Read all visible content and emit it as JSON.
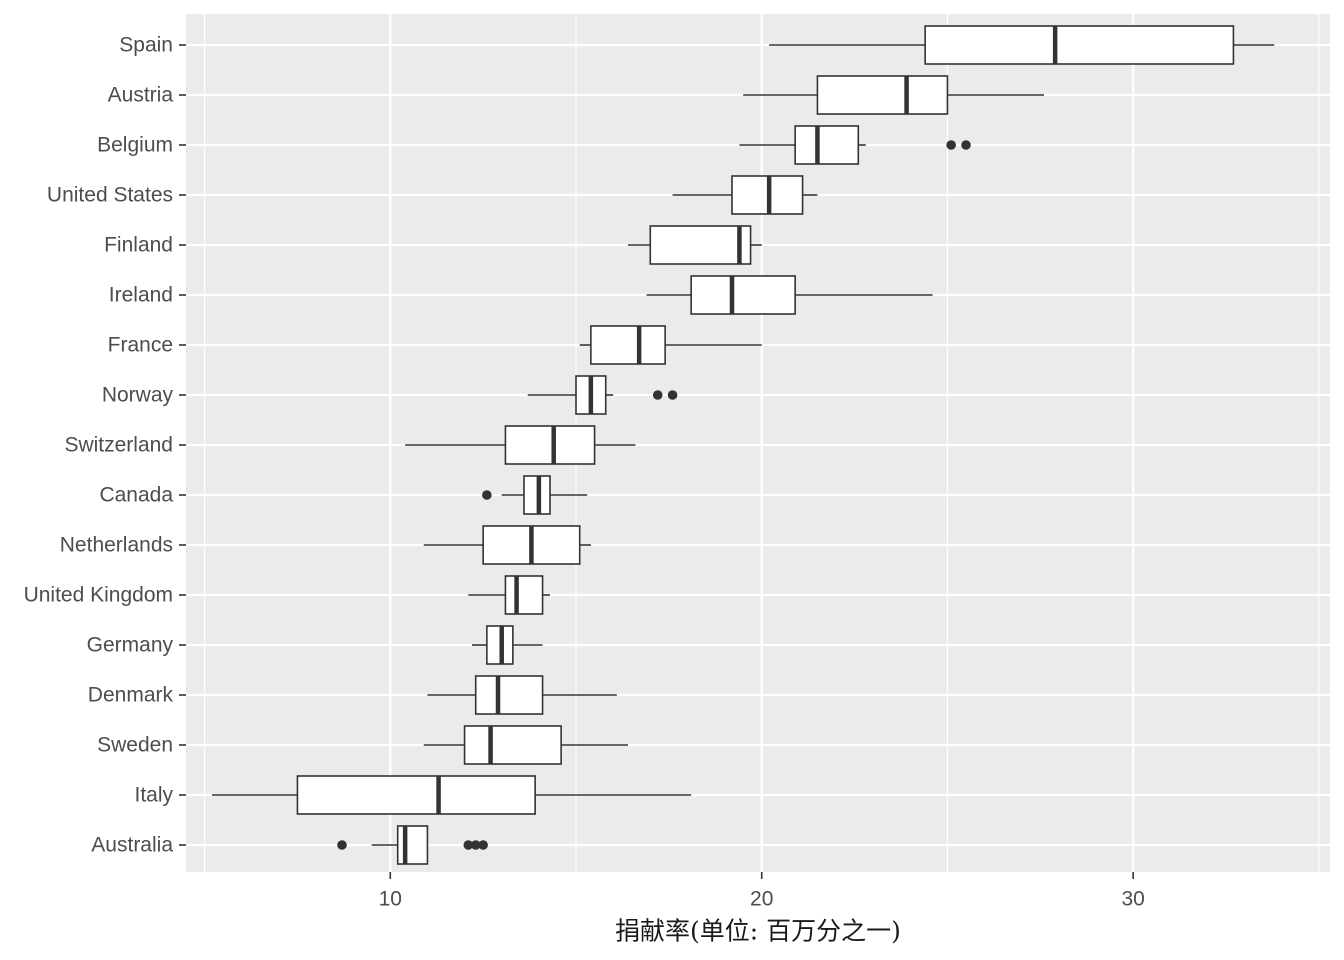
{
  "chart_data": {
    "type": "boxplot",
    "orientation": "horizontal",
    "xlabel": "捐献率(单位: 百万分之一)",
    "ylabel": "",
    "xlim": [
      4.5,
      35.3
    ],
    "x_ticks": [
      10,
      20,
      30
    ],
    "grid": true,
    "colors": {
      "panel": "#ebebeb",
      "grid_major": "#ffffff",
      "box_fill": "#ffffff",
      "box_line": "#333333",
      "outlier": "#333333"
    },
    "categories": [
      "Spain",
      "Austria",
      "Belgium",
      "United States",
      "Finland",
      "Ireland",
      "France",
      "Norway",
      "Switzerland",
      "Canada",
      "Netherlands",
      "United Kingdom",
      "Germany",
      "Denmark",
      "Sweden",
      "Italy",
      "Australia"
    ],
    "boxes": [
      {
        "label": "Spain",
        "min": 20.2,
        "q1": 24.4,
        "median": 27.9,
        "q3": 32.7,
        "max": 33.8,
        "outliers": []
      },
      {
        "label": "Austria",
        "min": 19.5,
        "q1": 21.5,
        "median": 23.9,
        "q3": 25.0,
        "max": 27.6,
        "outliers": []
      },
      {
        "label": "Belgium",
        "min": 19.4,
        "q1": 20.9,
        "median": 21.5,
        "q3": 22.6,
        "max": 22.8,
        "outliers": [
          25.1,
          25.5
        ]
      },
      {
        "label": "United States",
        "min": 17.6,
        "q1": 19.2,
        "median": 20.2,
        "q3": 21.1,
        "max": 21.5,
        "outliers": []
      },
      {
        "label": "Finland",
        "min": 16.4,
        "q1": 17.0,
        "median": 19.4,
        "q3": 19.7,
        "max": 20.0,
        "outliers": []
      },
      {
        "label": "Ireland",
        "min": 16.9,
        "q1": 18.1,
        "median": 19.2,
        "q3": 20.9,
        "max": 24.6,
        "outliers": []
      },
      {
        "label": "France",
        "min": 15.1,
        "q1": 15.4,
        "median": 16.7,
        "q3": 17.4,
        "max": 20.0,
        "outliers": []
      },
      {
        "label": "Norway",
        "min": 13.7,
        "q1": 15.0,
        "median": 15.4,
        "q3": 15.8,
        "max": 16.0,
        "outliers": [
          17.2,
          17.6
        ]
      },
      {
        "label": "Switzerland",
        "min": 10.4,
        "q1": 13.1,
        "median": 14.4,
        "q3": 15.5,
        "max": 16.6,
        "outliers": []
      },
      {
        "label": "Canada",
        "min": 13.0,
        "q1": 13.6,
        "median": 14.0,
        "q3": 14.3,
        "max": 15.3,
        "outliers": [
          12.6
        ]
      },
      {
        "label": "Netherlands",
        "min": 10.9,
        "q1": 12.5,
        "median": 13.8,
        "q3": 15.1,
        "max": 15.4,
        "outliers": []
      },
      {
        "label": "United Kingdom",
        "min": 12.1,
        "q1": 13.1,
        "median": 13.4,
        "q3": 14.1,
        "max": 14.3,
        "outliers": []
      },
      {
        "label": "Germany",
        "min": 12.2,
        "q1": 12.6,
        "median": 13.0,
        "q3": 13.3,
        "max": 14.1,
        "outliers": []
      },
      {
        "label": "Denmark",
        "min": 11.0,
        "q1": 12.3,
        "median": 12.9,
        "q3": 14.1,
        "max": 16.1,
        "outliers": []
      },
      {
        "label": "Sweden",
        "min": 10.9,
        "q1": 12.0,
        "median": 12.7,
        "q3": 14.6,
        "max": 16.4,
        "outliers": []
      },
      {
        "label": "Italy",
        "min": 5.2,
        "q1": 7.5,
        "median": 11.3,
        "q3": 13.9,
        "max": 18.1,
        "outliers": []
      },
      {
        "label": "Australia",
        "min": 9.5,
        "q1": 10.2,
        "median": 10.4,
        "q3": 11.0,
        "max": 11.0,
        "outliers": [
          8.7,
          12.1,
          12.3,
          12.5
        ]
      }
    ]
  }
}
